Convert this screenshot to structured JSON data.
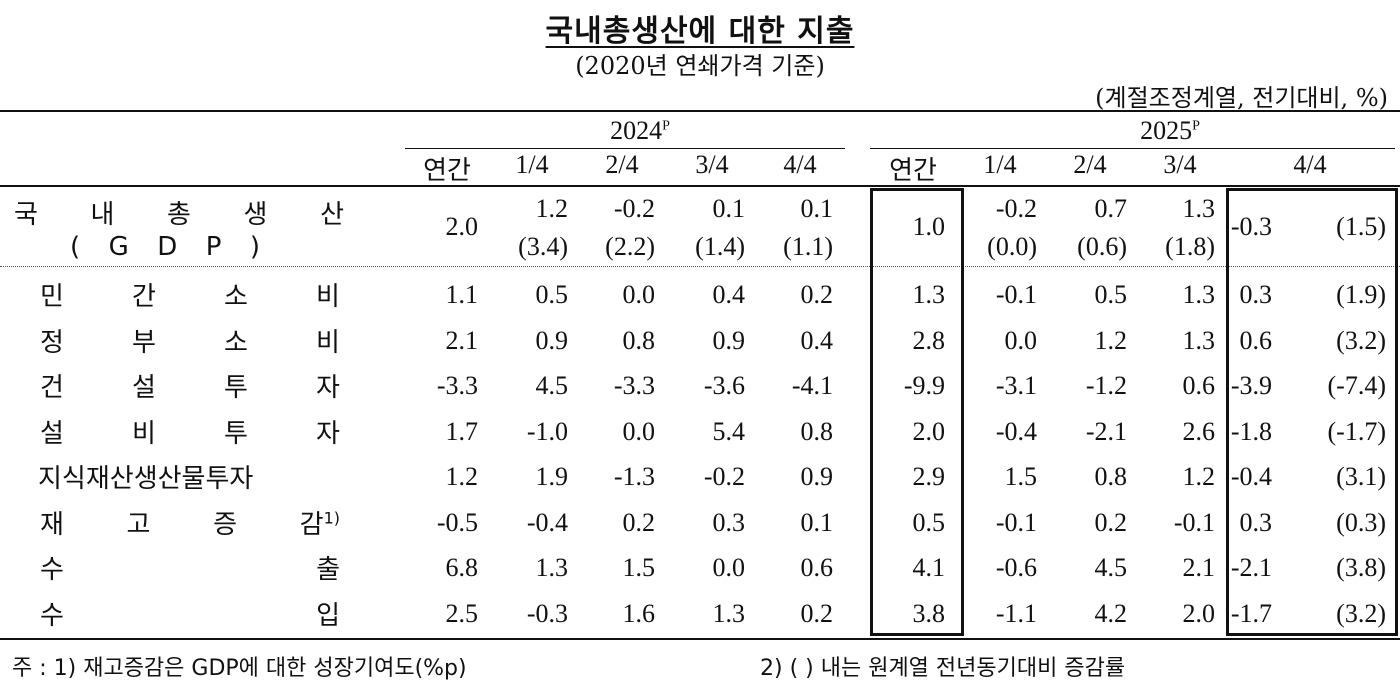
{
  "title": "국내총생산에 대한 지출",
  "subtitle": "(2020년 연쇄가격 기준)",
  "unit": "(계절조정계열, 전기대비, %)",
  "years": [
    {
      "label": "2024",
      "sup": "P"
    },
    {
      "label": "2025",
      "sup": "P"
    }
  ],
  "columns": [
    "연간",
    "1/4",
    "2/4",
    "3/4",
    "4/4",
    "연간",
    "1/4",
    "2/4",
    "3/4",
    "4/4"
  ],
  "gdp": {
    "label": "국내총생산",
    "label2": "(GDP)",
    "values": [
      "2.0",
      "1.2",
      "-0.2",
      "0.1",
      "0.1",
      "1.0",
      "-0.2",
      "0.7",
      "1.3",
      "-0.3"
    ],
    "yoy": [
      "",
      "(3.4)",
      "(2.2)",
      "(1.4)",
      "(1.1)",
      "",
      "(0.0)",
      "(0.6)",
      "(1.8)",
      "(1.5)"
    ]
  },
  "rows": [
    {
      "label": "민간소비",
      "sup": "",
      "values": [
        "1.1",
        "0.5",
        "0.0",
        "0.4",
        "0.2",
        "1.3",
        "-0.1",
        "0.5",
        "1.3",
        "0.3"
      ],
      "yoy": "(1.9)"
    },
    {
      "label": "정부소비",
      "sup": "",
      "values": [
        "2.1",
        "0.9",
        "0.8",
        "0.9",
        "0.4",
        "2.8",
        "0.0",
        "1.2",
        "1.3",
        "0.6"
      ],
      "yoy": "(3.2)"
    },
    {
      "label": "건설투자",
      "sup": "",
      "values": [
        "-3.3",
        "4.5",
        "-3.3",
        "-3.6",
        "-4.1",
        "-9.9",
        "-3.1",
        "-1.2",
        "0.6",
        "-3.9"
      ],
      "yoy": "(-7.4)"
    },
    {
      "label": "설비투자",
      "sup": "",
      "values": [
        "1.7",
        "-1.0",
        "0.0",
        "5.4",
        "0.8",
        "2.0",
        "-0.4",
        "-2.1",
        "2.6",
        "-1.8"
      ],
      "yoy": "(-1.7)"
    },
    {
      "label": "지식재산생산물투자",
      "sup": "",
      "values": [
        "1.2",
        "1.9",
        "-1.3",
        "-0.2",
        "0.9",
        "2.9",
        "1.5",
        "0.8",
        "1.2",
        "-0.4"
      ],
      "yoy": "(3.1)"
    },
    {
      "label": "재고증감",
      "sup": "1)",
      "values": [
        "-0.5",
        "-0.4",
        "0.2",
        "0.3",
        "0.1",
        "0.5",
        "-0.1",
        "0.2",
        "-0.1",
        "0.3"
      ],
      "yoy": "(0.3)"
    },
    {
      "label": "수출",
      "sup": "",
      "values": [
        "6.8",
        "1.3",
        "1.5",
        "0.0",
        "0.6",
        "4.1",
        "-0.6",
        "4.5",
        "2.1",
        "-2.1"
      ],
      "yoy": "(3.8)"
    },
    {
      "label": "수입",
      "sup": "",
      "values": [
        "2.5",
        "-0.3",
        "1.6",
        "1.3",
        "0.2",
        "3.8",
        "-1.1",
        "4.2",
        "2.0",
        "-1.7"
      ],
      "yoy": "(3.2)"
    }
  ],
  "notes": {
    "note1": "주 : 1) 재고증감은 GDP에 대한 성장기여도(%p)",
    "note2": "2) (   ) 내는 원계열 전년동기대비 증감률"
  }
}
